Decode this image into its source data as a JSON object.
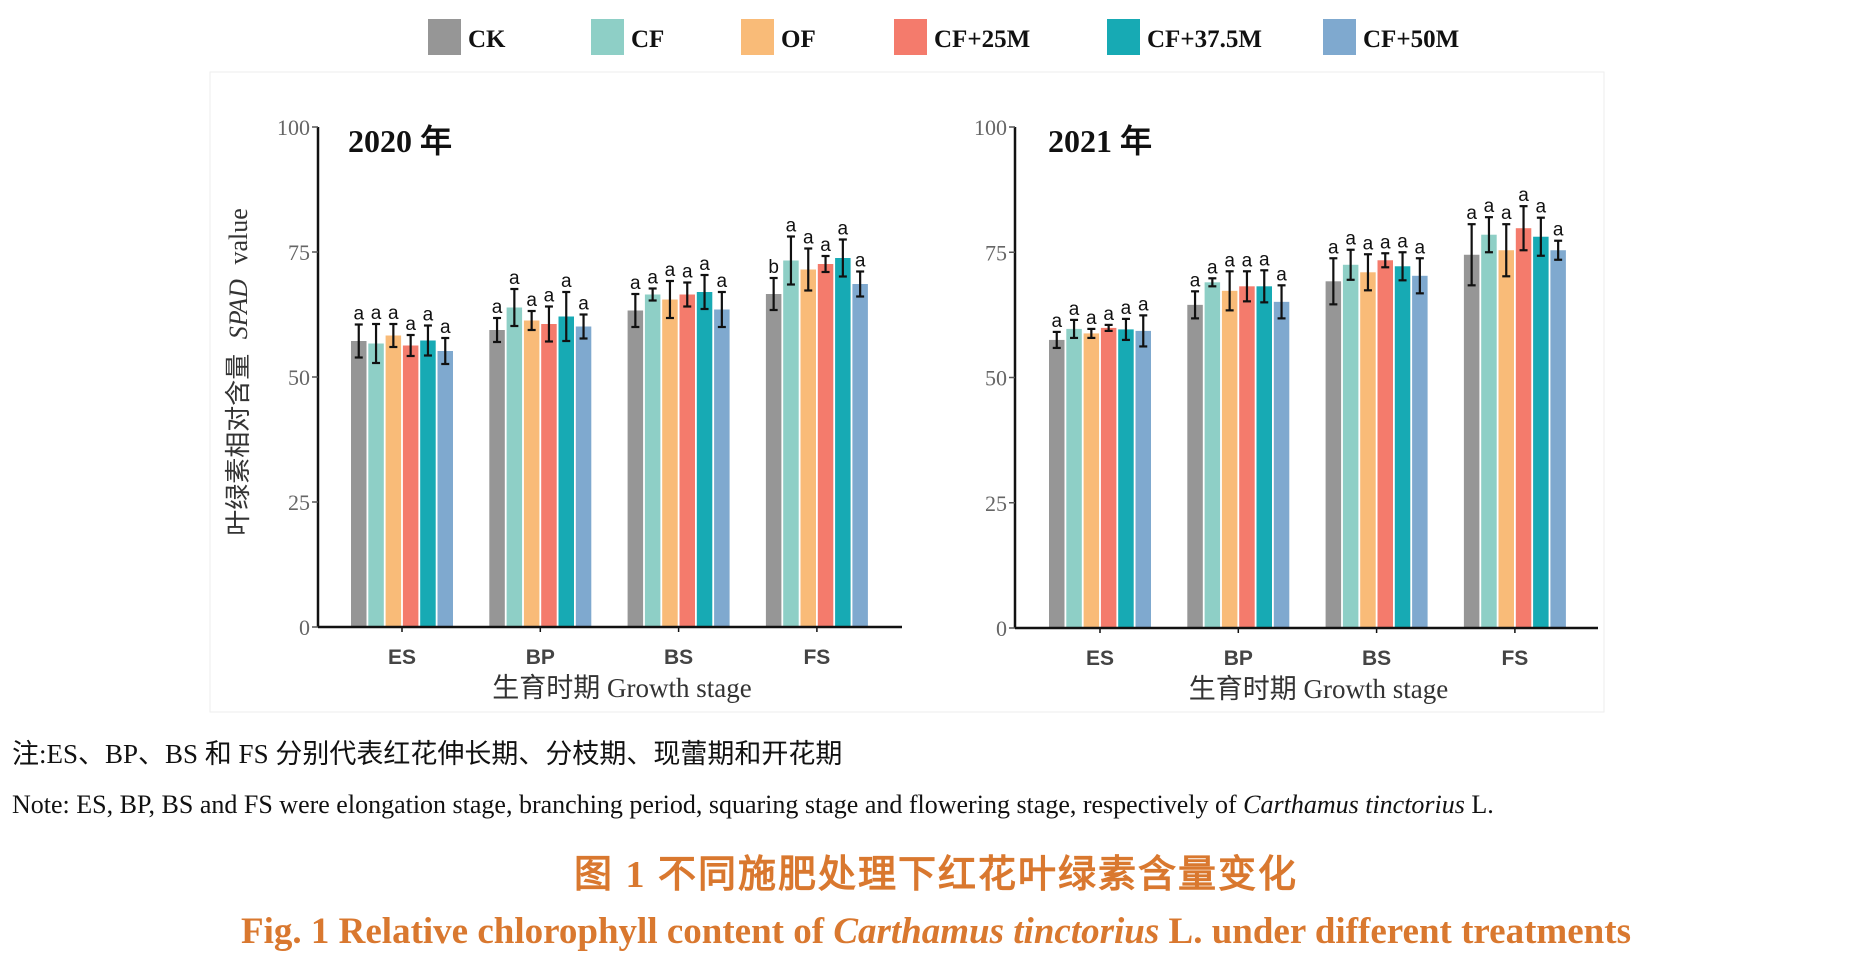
{
  "chart_data": {
    "type": "bar",
    "legend": {
      "placement": "top-center",
      "entries": [
        "CK",
        "CF",
        "OF",
        "CF+25M",
        "CF+37.5M",
        "CF+50M"
      ],
      "colors": [
        "#969696",
        "#8ecfc6",
        "#f9bb78",
        "#f47b6c",
        "#17aab4",
        "#7fa9cf"
      ]
    },
    "ylabel_cn": "叶绿素相对含量",
    "ylabel_en_italic": "SPAD",
    "ylabel_en": "value",
    "xlabel": "生育时期  Growth stage",
    "ylim": [
      0,
      100
    ],
    "yticks": [
      0,
      25,
      50,
      75,
      100
    ],
    "grid": false,
    "categories": [
      "ES",
      "BP",
      "BS",
      "FS"
    ],
    "panels": [
      {
        "title": "2020 年",
        "series": [
          {
            "name": "CK",
            "values": [
              57.2,
              59.4,
              63.3,
              66.6
            ],
            "errors": [
              3.3,
              2.4,
              3.3,
              3.2
            ],
            "letters": [
              "a",
              "a",
              "a",
              "b"
            ]
          },
          {
            "name": "CF",
            "values": [
              56.7,
              63.9,
              66.5,
              73.3
            ],
            "errors": [
              3.9,
              3.7,
              1.2,
              4.8
            ],
            "letters": [
              "a",
              "a",
              "a",
              "a"
            ]
          },
          {
            "name": "OF",
            "values": [
              58.3,
              61.3,
              65.5,
              71.5
            ],
            "errors": [
              2.3,
              1.9,
              3.7,
              4.2
            ],
            "letters": [
              "a",
              "a",
              "a",
              "a"
            ]
          },
          {
            "name": "CF+25M",
            "values": [
              56.3,
              60.6,
              66.5,
              72.6
            ],
            "errors": [
              2.1,
              3.5,
              2.4,
              1.6
            ],
            "letters": [
              "a",
              "a",
              "a",
              "a"
            ]
          },
          {
            "name": "CF+37.5M",
            "values": [
              57.3,
              62.1,
              67.0,
              73.8
            ],
            "errors": [
              3.0,
              4.9,
              3.4,
              3.7
            ],
            "letters": [
              "a",
              "a",
              "a",
              "a"
            ]
          },
          {
            "name": "CF+50M",
            "values": [
              55.2,
              60.1,
              63.5,
              68.6
            ],
            "errors": [
              2.6,
              2.4,
              3.5,
              2.5
            ],
            "letters": [
              "a",
              "a",
              "a",
              "a"
            ]
          }
        ]
      },
      {
        "title": "2021 年",
        "series": [
          {
            "name": "CK",
            "values": [
              57.5,
              64.5,
              69.2,
              74.5
            ],
            "errors": [
              1.6,
              2.7,
              4.6,
              6.1
            ],
            "letters": [
              "a",
              "a",
              "a",
              "a"
            ]
          },
          {
            "name": "CF",
            "values": [
              59.7,
              69.0,
              72.5,
              78.5
            ],
            "errors": [
              1.8,
              0.8,
              3.0,
              3.5
            ],
            "letters": [
              "a",
              "a",
              "a",
              "a"
            ]
          },
          {
            "name": "OF",
            "values": [
              58.8,
              67.3,
              71.0,
              75.4
            ],
            "errors": [
              0.9,
              3.9,
              3.6,
              5.2
            ],
            "letters": [
              "a",
              "a",
              "a",
              "a"
            ]
          },
          {
            "name": "CF+25M",
            "values": [
              59.9,
              68.2,
              73.4,
              79.8
            ],
            "errors": [
              0.6,
              3.0,
              1.4,
              4.4
            ],
            "letters": [
              "a",
              "a",
              "a",
              "a"
            ]
          },
          {
            "name": "CF+37.5M",
            "values": [
              59.6,
              68.2,
              72.2,
              78.1
            ],
            "errors": [
              2.1,
              3.2,
              2.8,
              3.8
            ],
            "letters": [
              "a",
              "a",
              "a",
              "a"
            ]
          },
          {
            "name": "CF+50M",
            "values": [
              59.3,
              65.1,
              70.3,
              75.4
            ],
            "errors": [
              3.1,
              3.3,
              3.5,
              1.9
            ],
            "letters": [
              "a",
              "a",
              "a",
              "a"
            ]
          }
        ]
      }
    ]
  },
  "notes": {
    "cn": "注:ES、BP、BS 和 FS 分别代表红花伸长期、分枝期、现蕾期和开花期",
    "en_prefix": "Note: ES, BP, BS and FS were elongation stage, branching period, squaring stage and flowering stage, respectively of ",
    "en_species": "Carthamus tinctorius",
    "en_suffix": " L."
  },
  "caption": {
    "cn": "图 1   不同施肥处理下红花叶绿素含量变化",
    "en_prefix": "Fig. 1   Relative chlorophyll content of ",
    "en_species": "Carthamus tinctorius",
    "en_suffix": " L.  under different treatments",
    "color": "#d9782f"
  }
}
